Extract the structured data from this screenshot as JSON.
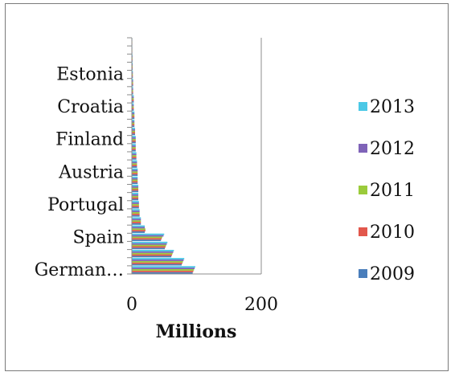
{
  "chart_data": {
    "type": "bar",
    "orientation": "horizontal",
    "categories": [
      "German…",
      "",
      "",
      "",
      "Spain",
      "",
      "",
      "",
      "Portugal",
      "",
      "",
      "",
      "Austria",
      "",
      "",
      "",
      "Finland",
      "",
      "",
      "",
      "Croatia",
      "",
      "",
      "",
      "Estonia",
      "",
      "",
      "",
      ""
    ],
    "series": [
      {
        "name": "2013",
        "color": "#4bc8e6",
        "values": [
          98,
          81,
          65,
          55,
          50,
          20,
          14,
          12,
          11,
          10,
          10,
          9,
          9,
          8,
          7,
          6,
          6,
          5,
          4,
          4,
          3,
          3,
          2,
          2,
          1.6,
          1.3,
          1.1,
          0.8,
          0.5
        ]
      },
      {
        "name": "2012",
        "color": "#7f63b8",
        "values": [
          97,
          80,
          64,
          54,
          49,
          20,
          14,
          12,
          11,
          10,
          10,
          9,
          9,
          8,
          7,
          6,
          6,
          5,
          4,
          4,
          3,
          3,
          2,
          2,
          1.6,
          1.3,
          1.1,
          0.8,
          0.5
        ]
      },
      {
        "name": "2011",
        "color": "#9bcb3b",
        "values": [
          96,
          79,
          63,
          53,
          47,
          21,
          14,
          12,
          11,
          10,
          10,
          9,
          9,
          8,
          7,
          6,
          6,
          5,
          4,
          4,
          3,
          3,
          2,
          2,
          1.6,
          1.3,
          1.1,
          0.8,
          0.5
        ]
      },
      {
        "name": "2010",
        "color": "#e2574c",
        "values": [
          95,
          78,
          62,
          52,
          46,
          21,
          14,
          12,
          11,
          10,
          10,
          9,
          9,
          8,
          7,
          6,
          6,
          5,
          4,
          4,
          3,
          3,
          2,
          2,
          1.6,
          1.3,
          1.1,
          0.8,
          0.5
        ]
      },
      {
        "name": "2009",
        "color": "#4a7ebb",
        "values": [
          94,
          77,
          61,
          51,
          45,
          20,
          14,
          12,
          11,
          10,
          10,
          9,
          9,
          8,
          7,
          6,
          6,
          5,
          4,
          4,
          3,
          3,
          2,
          2,
          1.6,
          1.3,
          1.1,
          0.8,
          0.5
        ]
      }
    ],
    "xlabel": "Millions",
    "ylabel": "",
    "title": "",
    "xlim": [
      0,
      200
    ],
    "xticks": [
      0,
      200
    ],
    "grid": false,
    "legend_position": "right",
    "legend_order": [
      "2013",
      "2012",
      "2011",
      "2010",
      "2009"
    ]
  }
}
